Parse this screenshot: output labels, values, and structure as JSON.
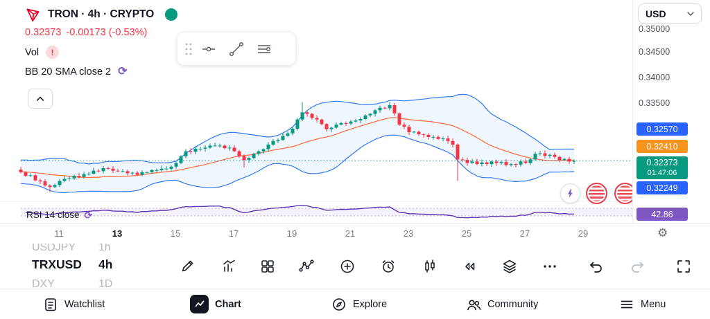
{
  "header": {
    "title": "TRON · 4h · CRYPTO",
    "last_price": "0.32373",
    "change": "-0.00173 (-0.53%)",
    "vol_label": "Vol",
    "vol_alert": "!",
    "bb_label": "BB 20 SMA close 2",
    "currency_selector": "USD"
  },
  "legend": {
    "rsi_label": "RSI 14 close"
  },
  "axis": {
    "price_ticks": [
      "0.35000",
      "0.34500",
      "0.34000",
      "0.33500"
    ],
    "date_ticks": [
      "11",
      "13",
      "15",
      "17",
      "19",
      "21",
      "23",
      "25",
      "27",
      "29"
    ]
  },
  "badges": {
    "upper": {
      "label": "0.32570",
      "color": "#2962FF"
    },
    "mid": {
      "label": "0.32410",
      "color": "#F7941E"
    },
    "last": {
      "label": "0.32373",
      "countdown": "01:47:06",
      "color": "#089981"
    },
    "lower": {
      "label": "0.32249",
      "color": "#2962FF"
    },
    "rsi": {
      "label": "42.86",
      "color": "#7E57C2"
    }
  },
  "picker": {
    "rows": [
      {
        "symbol": "USDJPY",
        "interval": "1h"
      },
      {
        "symbol": "TRXUSD",
        "interval": "4h"
      },
      {
        "symbol": "DXY",
        "interval": "1D"
      }
    ]
  },
  "nav": {
    "items": [
      {
        "label": "Watchlist"
      },
      {
        "label": "Chart",
        "active": true
      },
      {
        "label": "Explore"
      },
      {
        "label": "Community"
      },
      {
        "label": "Menu"
      }
    ]
  },
  "icons": {
    "gear": "⚙",
    "sync": "⟳"
  },
  "colors": {
    "up": "#089981",
    "down": "#F23645",
    "bb": "#3179F5",
    "bb_fill": "rgba(49,121,245,0.07)",
    "basis": "#FF7043",
    "rsi": "#5E35B1",
    "rsi_band": "rgba(126,87,194,0.5)",
    "rsi_fill": "rgba(126,87,194,0.08)"
  },
  "chart_data": {
    "type": "candlestick",
    "symbol": "TRXUSD",
    "interval": "4h",
    "last_price": 0.32373,
    "countdown": "01:47:06",
    "y_ticks": [
      0.35,
      0.345,
      0.34,
      0.335
    ],
    "x_ticks": [
      "11",
      "13",
      "15",
      "17",
      "19",
      "21",
      "23",
      "25",
      "27",
      "29"
    ],
    "indicators": {
      "bollinger": "BB 20 SMA close 2",
      "rsi": "RSI 14 close",
      "rsi_last": 42.86
    },
    "pre_pad": [
      0.3228,
      0.3216,
      0.3224,
      0.321,
      0.3222,
      0.3208,
      0.3218,
      0.3206,
      0.3216,
      0.321,
      0.3232,
      0.322,
      0.3228,
      0.3212,
      0.3222,
      0.3206,
      0.3218,
      0.3202,
      0.3214,
      0.322
    ],
    "closes": [
      0.3215,
      0.3208,
      0.3209,
      0.3199,
      0.3197,
      0.3189,
      0.3186,
      0.319,
      0.3198,
      0.3202,
      0.3203,
      0.3208,
      0.3206,
      0.3211,
      0.3212,
      0.3218,
      0.3217,
      0.3223,
      0.3222,
      0.3218,
      0.3217,
      0.3217,
      0.3213,
      0.3214,
      0.321,
      0.3215,
      0.3215,
      0.3219,
      0.3219,
      0.3222,
      0.3222,
      0.3226,
      0.3233,
      0.3246,
      0.3256,
      0.3255,
      0.3261,
      0.3261,
      0.3263,
      0.3267,
      0.3267,
      0.3267,
      0.3262,
      0.3263,
      0.3256,
      0.3246,
      0.3239,
      0.3243,
      0.3251,
      0.3256,
      0.326,
      0.3269,
      0.3276,
      0.3278,
      0.3286,
      0.3291,
      0.33,
      0.3318,
      0.3332,
      0.3329,
      0.3321,
      0.3318,
      0.3309,
      0.3299,
      0.3302,
      0.3308,
      0.3311,
      0.331,
      0.3314,
      0.3316,
      0.3319,
      0.3326,
      0.3329,
      0.3336,
      0.3341,
      0.334,
      0.3346,
      0.333,
      0.3308,
      0.3304,
      0.3293,
      0.3294,
      0.3289,
      0.3288,
      0.3284,
      0.3284,
      0.328,
      0.3281,
      0.3276,
      0.3269,
      0.324,
      0.3239,
      0.3233,
      0.3236,
      0.3231,
      0.3234,
      0.3231,
      0.3236,
      0.3233,
      0.3235,
      0.3229,
      0.3231,
      0.323,
      0.3236,
      0.3233,
      0.324,
      0.3251,
      0.3252,
      0.3247,
      0.3249,
      0.3245,
      0.3239,
      0.3241,
      0.3236,
      0.3237
    ],
    "wick_overrides": {
      "6": {
        "l": 0.3176
      },
      "46": {
        "l": 0.3224
      },
      "58": {
        "h": 0.3352
      },
      "76": {
        "h": 0.3352
      },
      "77": {
        "h": 0.335
      },
      "90": {
        "l": 0.3198
      }
    }
  }
}
